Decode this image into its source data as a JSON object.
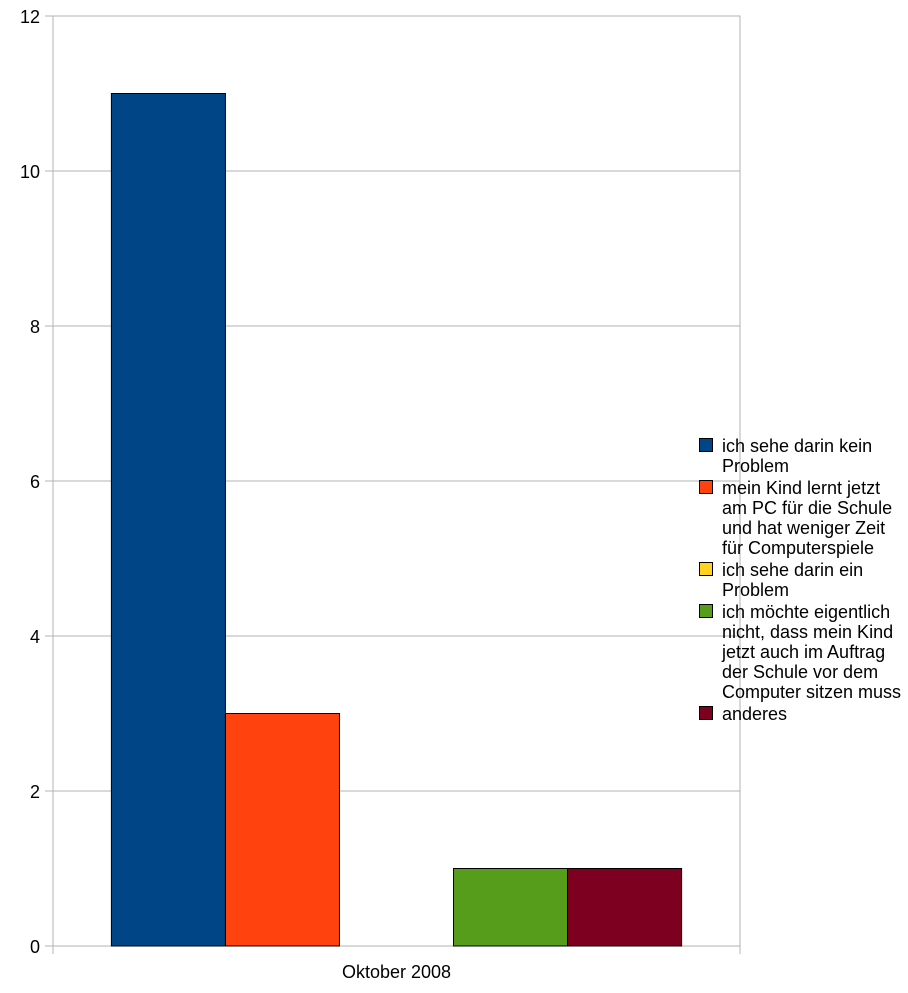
{
  "chart_data": {
    "type": "bar",
    "categories": [
      "Oktober 2008"
    ],
    "series": [
      {
        "name": "ich sehe darin kein Problem",
        "values": [
          11
        ],
        "color": "#004586"
      },
      {
        "name": "mein Kind lernt jetzt am PC für die Schule und hat weniger Zeit für Computerspiele",
        "values": [
          3
        ],
        "color": "#ff420e"
      },
      {
        "name": "ich sehe darin ein Problem",
        "values": [
          0
        ],
        "color": "#ffd320"
      },
      {
        "name": "ich möchte eigentlich nicht, dass mein Kind jetzt auch im Auftrag der Schule vor dem Computer sitzen muss",
        "values": [
          1
        ],
        "color": "#579d1c"
      },
      {
        "name": "anderes",
        "values": [
          1
        ],
        "color": "#7e0021"
      }
    ],
    "ylim": [
      0,
      12
    ],
    "yticks": [
      "0",
      "2",
      "4",
      "6",
      "8",
      "10",
      "12"
    ],
    "grid": true,
    "legend_position": "right"
  }
}
